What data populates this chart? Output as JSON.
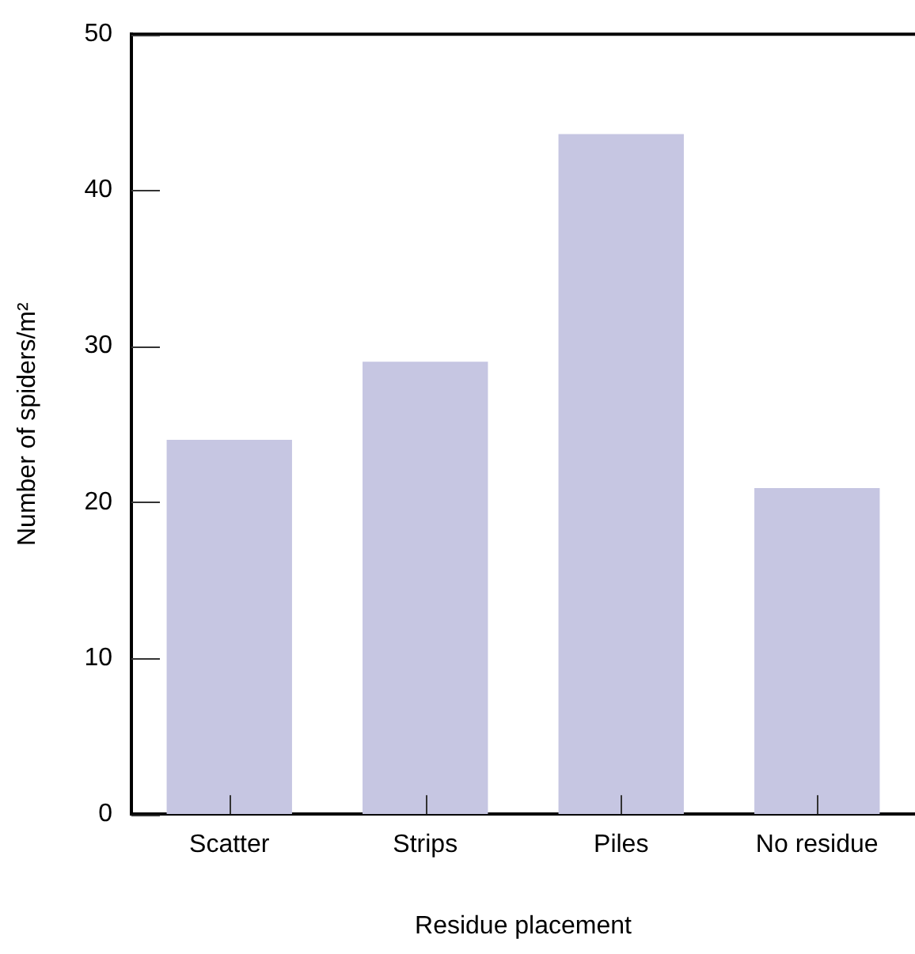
{
  "chart_data": {
    "type": "bar",
    "xlabel": "Residue placement",
    "ylabel": "Number of spiders/m²",
    "categories": [
      "Scatter",
      "Strips",
      "Piles",
      "No residue"
    ],
    "values": [
      24.0,
      29.0,
      43.6,
      20.9
    ],
    "color": "#c6c6e2",
    "ylim": [
      0,
      50
    ],
    "yticks": [
      0,
      10,
      20,
      30,
      40,
      50
    ],
    "grid": false,
    "legend": false
  }
}
